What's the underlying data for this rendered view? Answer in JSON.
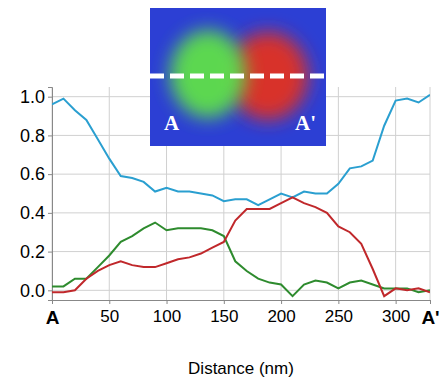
{
  "chart_data": {
    "type": "line",
    "x_label": "Distance (nm)",
    "annotations": [
      "A",
      "A'"
    ],
    "x": [
      0,
      10,
      20,
      30,
      40,
      50,
      60,
      70,
      80,
      90,
      100,
      110,
      120,
      130,
      140,
      150,
      160,
      170,
      180,
      190,
      200,
      210,
      220,
      230,
      240,
      250,
      260,
      270,
      280,
      290,
      300,
      310,
      320,
      330
    ],
    "series": [
      {
        "color": "#2a9fd0",
        "values": [
          0.96,
          0.99,
          0.93,
          0.88,
          0.78,
          0.68,
          0.59,
          0.58,
          0.56,
          0.51,
          0.53,
          0.51,
          0.51,
          0.5,
          0.49,
          0.46,
          0.47,
          0.47,
          0.44,
          0.47,
          0.5,
          0.48,
          0.51,
          0.5,
          0.5,
          0.55,
          0.63,
          0.64,
          0.67,
          0.85,
          0.98,
          0.99,
          0.97,
          1.01
        ]
      },
      {
        "color": "#2e8b2e",
        "values": [
          0.02,
          0.02,
          0.06,
          0.06,
          0.12,
          0.18,
          0.25,
          0.28,
          0.32,
          0.35,
          0.31,
          0.32,
          0.32,
          0.32,
          0.31,
          0.28,
          0.15,
          0.1,
          0.06,
          0.04,
          0.03,
          -0.03,
          0.03,
          0.05,
          0.04,
          0.01,
          0.04,
          0.05,
          0.03,
          0.01,
          0.01,
          0.01,
          -0.01,
          0.0
        ]
      },
      {
        "color": "#c0282b",
        "values": [
          -0.01,
          -0.01,
          0.0,
          0.06,
          0.1,
          0.13,
          0.15,
          0.13,
          0.12,
          0.12,
          0.14,
          0.16,
          0.17,
          0.19,
          0.22,
          0.25,
          0.36,
          0.42,
          0.42,
          0.42,
          0.45,
          0.48,
          0.45,
          0.43,
          0.4,
          0.33,
          0.3,
          0.24,
          0.11,
          -0.03,
          0.01,
          0.0,
          0.01,
          -0.01
        ]
      }
    ],
    "xlim": [
      0,
      330
    ],
    "xticks": [
      {
        "value": 0,
        "label": "A"
      },
      50,
      100,
      150,
      200,
      250,
      300,
      {
        "value": 330,
        "label": "A'"
      }
    ],
    "ylim": [
      -0.05,
      1.05
    ],
    "yticks": [
      {
        "value": 0,
        "label": "0.0"
      },
      {
        "value": 0.2,
        "label": "0.2"
      },
      {
        "value": 0.4,
        "label": "0.4"
      },
      {
        "value": 0.6,
        "label": "0.6"
      },
      {
        "value": 0.8,
        "label": "0.8"
      },
      {
        "value": 1.0,
        "label": "1.0"
      }
    ],
    "grid": true
  }
}
